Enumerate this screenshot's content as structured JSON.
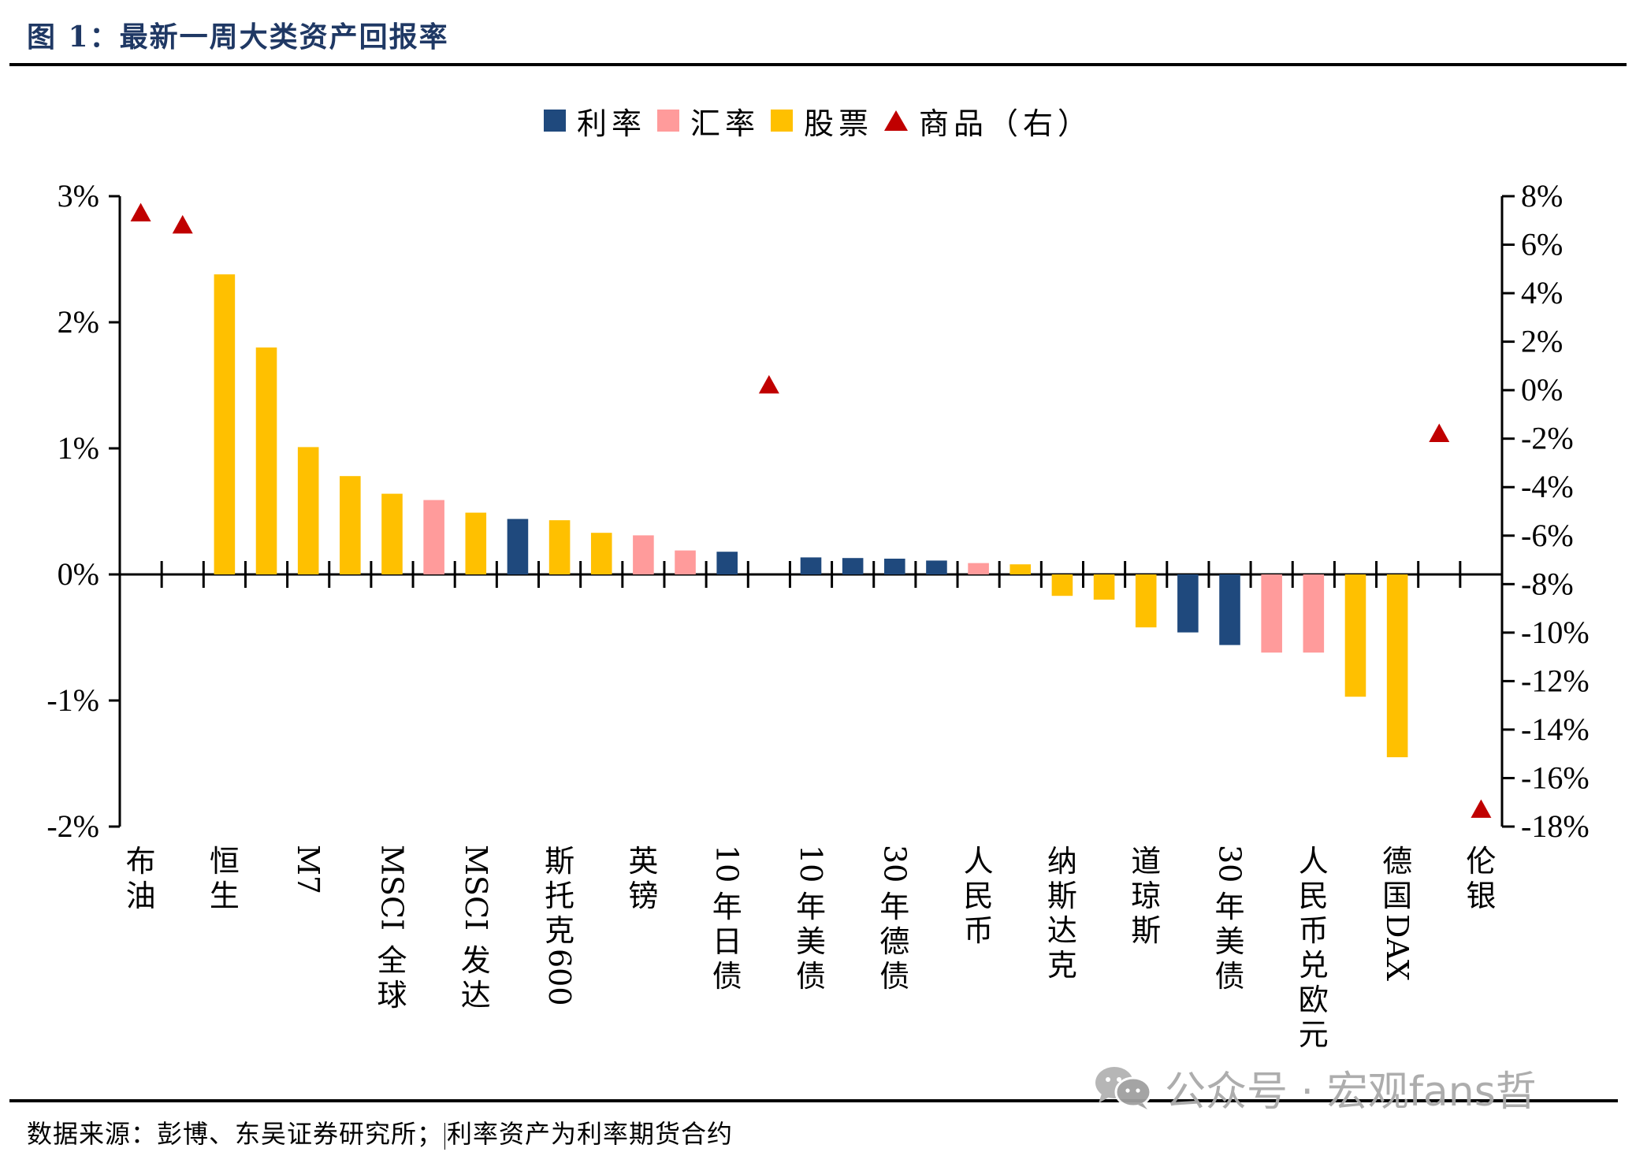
{
  "header": {
    "title": "图 1：最新一周大类资产回报率"
  },
  "legend": [
    {
      "label": "利率",
      "shape": "square",
      "color": "#1f497d"
    },
    {
      "label": "汇率",
      "shape": "square",
      "color": "#ff9b9b"
    },
    {
      "label": "股票",
      "shape": "square",
      "color": "#ffc000"
    },
    {
      "label": "商品（右）",
      "shape": "triangle",
      "color": "#c00000"
    }
  ],
  "footer": {
    "source": "数据来源：彭博、东吴证券研究所；",
    "note": "利率资产为利率期货合约"
  },
  "watermark": {
    "text": "公众号 · 宏观fans哲",
    "icon": "wechat-icon"
  },
  "chart_data": {
    "type": "bar",
    "title": "最新一周大类资产回报率",
    "xlabel": "",
    "ylabel": "",
    "y_left": {
      "range": [
        -2,
        3
      ],
      "ticks": [
        3,
        2,
        1,
        0,
        -1,
        -2
      ],
      "tick_labels": [
        "3%",
        "2%",
        "1%",
        "0%",
        "-1%",
        "-2%"
      ]
    },
    "y_right": {
      "range": [
        -18,
        8
      ],
      "ticks": [
        8,
        6,
        4,
        2,
        0,
        -2,
        -4,
        -6,
        -8,
        -10,
        -12,
        -14,
        -16,
        -18
      ],
      "tick_labels": [
        "8%",
        "6%",
        "4%",
        "2%",
        "0%",
        "-2%",
        "-4%",
        "-6%",
        "-8%",
        "-10%",
        "-12%",
        "-14%",
        "-16%",
        "-18%"
      ]
    },
    "grid": false,
    "legend_position": "top-center",
    "series_colors": {
      "利率": "#1f497d",
      "汇率": "#ff9b9b",
      "股票": "#ffc000",
      "商品": "#c00000"
    },
    "categories": [
      {
        "label": "布油",
        "shown": true,
        "series": "商品",
        "axis": "right",
        "value": 7.3
      },
      {
        "label": "",
        "shown": false,
        "series": "商品",
        "axis": "right",
        "value": 6.8
      },
      {
        "label": "恒生",
        "shown": true,
        "series": "股票",
        "axis": "left",
        "value": 2.38
      },
      {
        "label": "",
        "shown": false,
        "series": "股票",
        "axis": "left",
        "value": 1.8
      },
      {
        "label": "M7",
        "shown": true,
        "series": "股票",
        "axis": "left",
        "value": 1.01
      },
      {
        "label": "",
        "shown": false,
        "series": "股票",
        "axis": "left",
        "value": 0.78
      },
      {
        "label": "MSCI全球",
        "shown": true,
        "series": "股票",
        "axis": "left",
        "value": 0.64
      },
      {
        "label": "",
        "shown": false,
        "series": "汇率",
        "axis": "left",
        "value": 0.59
      },
      {
        "label": "MSCI发达",
        "shown": true,
        "series": "股票",
        "axis": "left",
        "value": 0.49
      },
      {
        "label": "",
        "shown": false,
        "series": "利率",
        "axis": "left",
        "value": 0.44
      },
      {
        "label": "斯托克600",
        "shown": true,
        "series": "股票",
        "axis": "left",
        "value": 0.43
      },
      {
        "label": "",
        "shown": false,
        "series": "股票",
        "axis": "left",
        "value": 0.33
      },
      {
        "label": "英镑",
        "shown": true,
        "series": "汇率",
        "axis": "left",
        "value": 0.31
      },
      {
        "label": "",
        "shown": false,
        "series": "汇率",
        "axis": "left",
        "value": 0.19
      },
      {
        "label": "10年日债",
        "shown": true,
        "series": "利率",
        "axis": "left",
        "value": 0.18
      },
      {
        "label": "",
        "shown": false,
        "series": "商品",
        "axis": "right",
        "value": 0.2
      },
      {
        "label": "10年美债",
        "shown": true,
        "series": "利率",
        "axis": "left",
        "value": 0.135
      },
      {
        "label": "",
        "shown": false,
        "series": "利率",
        "axis": "left",
        "value": 0.13
      },
      {
        "label": "30年德债",
        "shown": true,
        "series": "利率",
        "axis": "left",
        "value": 0.125
      },
      {
        "label": "",
        "shown": false,
        "series": "利率",
        "axis": "left",
        "value": 0.11
      },
      {
        "label": "人民币",
        "shown": true,
        "series": "汇率",
        "axis": "left",
        "value": 0.09
      },
      {
        "label": "",
        "shown": false,
        "series": "股票",
        "axis": "left",
        "value": 0.08
      },
      {
        "label": "纳斯达克",
        "shown": true,
        "series": "股票",
        "axis": "left",
        "value": -0.17
      },
      {
        "label": "",
        "shown": false,
        "series": "股票",
        "axis": "left",
        "value": -0.2
      },
      {
        "label": "道琼斯",
        "shown": true,
        "series": "股票",
        "axis": "left",
        "value": -0.42
      },
      {
        "label": "",
        "shown": false,
        "series": "利率",
        "axis": "left",
        "value": -0.46
      },
      {
        "label": "30年美债",
        "shown": true,
        "series": "利率",
        "axis": "left",
        "value": -0.56
      },
      {
        "label": "",
        "shown": false,
        "series": "汇率",
        "axis": "left",
        "value": -0.62
      },
      {
        "label": "人民币兑欧元",
        "shown": true,
        "series": "汇率",
        "axis": "left",
        "value": -0.62
      },
      {
        "label": "",
        "shown": false,
        "series": "股票",
        "axis": "left",
        "value": -0.97
      },
      {
        "label": "德国DAX",
        "shown": true,
        "series": "股票",
        "axis": "left",
        "value": -1.45
      },
      {
        "label": "",
        "shown": false,
        "series": "商品",
        "axis": "right",
        "value": -1.8
      },
      {
        "label": "伦银",
        "shown": true,
        "series": "商品",
        "axis": "right",
        "value": -17.3
      }
    ]
  }
}
